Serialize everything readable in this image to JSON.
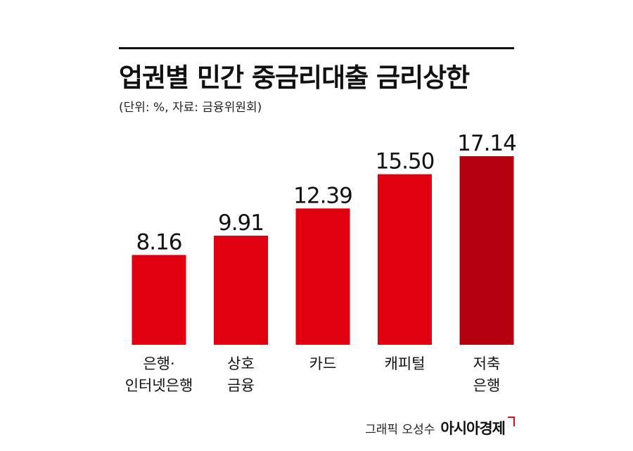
{
  "header": {
    "title": "업권별 민간 중금리대출 금리상한",
    "subtitle": "(단위: %, 자료: 금융위원회)"
  },
  "footer": {
    "credit": "그래픽 오성수",
    "brand": "아시아경제"
  },
  "colors": {
    "bar": "#e0000f",
    "bar_highlight": "#b5000d",
    "text": "#111111",
    "brand_mark": "#c9151e"
  },
  "chart_data": {
    "type": "bar",
    "title": "업권별 민간 중금리대출 금리상한",
    "subtitle": "(단위: %, 자료: 금융위원회)",
    "categories": [
      [
        "은행·",
        "인터넷은행"
      ],
      [
        "상호",
        "금융"
      ],
      [
        "카드"
      ],
      [
        "캐피털"
      ],
      [
        "저축",
        "은행"
      ]
    ],
    "values": [
      8.16,
      9.91,
      12.39,
      15.5,
      17.14
    ],
    "value_labels": [
      "8.16",
      "9.91",
      "12.39",
      "15.50",
      "17.14"
    ],
    "ylim": [
      0,
      17.14
    ],
    "grid": false,
    "legend": "none",
    "highlight_index": 4
  }
}
